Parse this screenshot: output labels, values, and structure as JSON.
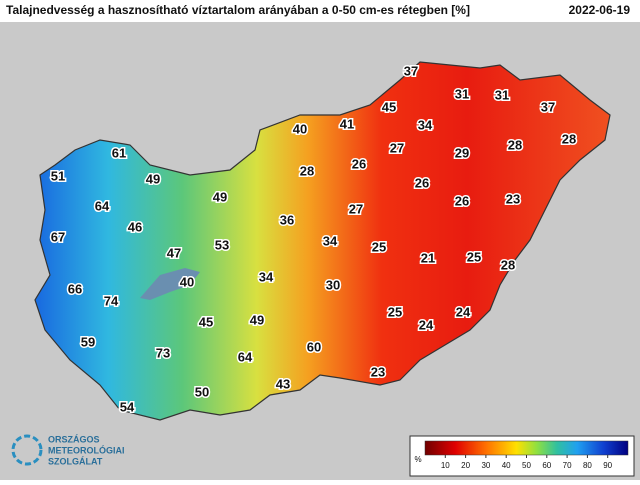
{
  "header": {
    "title": "Talajnedvesség a hasznosítható víztartalom arányában a 0-50 cm-es rétegben [%]",
    "date": "2022-06-19"
  },
  "stations": [
    37,
    31,
    31,
    37,
    45,
    41,
    34,
    40,
    27,
    29,
    28,
    28,
    61,
    26,
    26,
    51,
    49,
    28,
    49,
    26,
    23,
    27,
    64,
    36,
    46,
    67,
    34,
    53,
    25,
    47,
    21,
    25,
    28,
    34,
    40,
    30,
    66,
    74,
    25,
    24,
    45,
    49,
    24,
    59,
    60,
    73,
    64,
    23,
    43,
    50,
    54
  ],
  "legend": {
    "unit": "%",
    "ticks": [
      10,
      20,
      30,
      40,
      50,
      60,
      70,
      80,
      90
    ],
    "range": [
      0,
      100
    ]
  },
  "logo": [
    "ORSZÁGOS",
    "METEOROLÓGIAI",
    "SZOLGÁLAT"
  ]
}
